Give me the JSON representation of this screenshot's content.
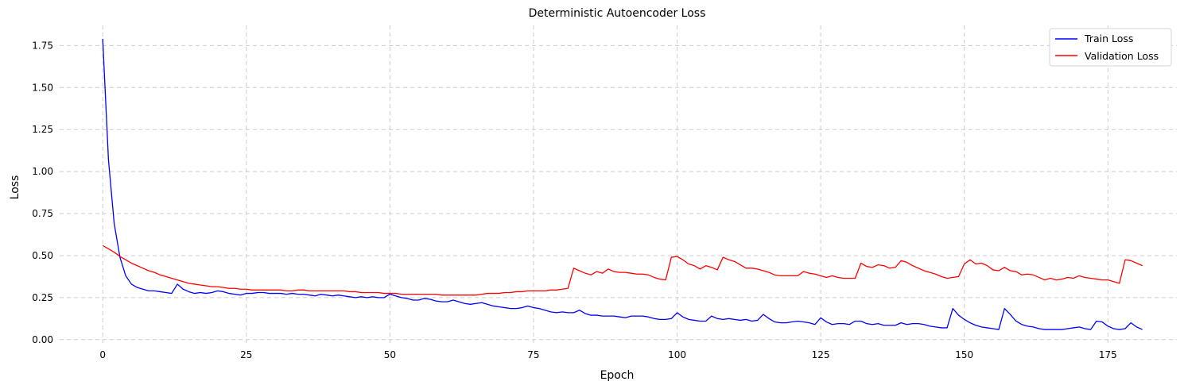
{
  "chart_data": {
    "type": "line",
    "title": "Deterministic Autoencoder Loss",
    "xlabel": "Epoch",
    "ylabel": "Loss",
    "xlim": [
      -7.5,
      187
    ],
    "ylim": [
      -0.02,
      1.87
    ],
    "xticks": [
      0,
      25,
      50,
      75,
      100,
      125,
      150,
      175
    ],
    "yticks": [
      0.0,
      0.25,
      0.5,
      0.75,
      1.0,
      1.25,
      1.5,
      1.75
    ],
    "ytick_labels": [
      "0.00",
      "0.25",
      "0.50",
      "0.75",
      "1.00",
      "1.25",
      "1.50",
      "1.75"
    ],
    "grid": true,
    "legend_position": "top-right",
    "series": [
      {
        "name": "Train Loss",
        "color": "#0000ff",
        "values": [
          1.79,
          1.07,
          0.69,
          0.49,
          0.38,
          0.33,
          0.31,
          0.3,
          0.29,
          0.29,
          0.285,
          0.28,
          0.275,
          0.33,
          0.3,
          0.285,
          0.275,
          0.28,
          0.275,
          0.28,
          0.29,
          0.285,
          0.275,
          0.27,
          0.265,
          0.275,
          0.275,
          0.28,
          0.28,
          0.275,
          0.275,
          0.275,
          0.27,
          0.275,
          0.27,
          0.27,
          0.265,
          0.26,
          0.27,
          0.265,
          0.26,
          0.265,
          0.26,
          0.255,
          0.25,
          0.255,
          0.25,
          0.255,
          0.25,
          0.25,
          0.27,
          0.26,
          0.25,
          0.245,
          0.235,
          0.235,
          0.245,
          0.24,
          0.23,
          0.225,
          0.225,
          0.235,
          0.225,
          0.215,
          0.21,
          0.215,
          0.22,
          0.21,
          0.2,
          0.195,
          0.19,
          0.185,
          0.185,
          0.19,
          0.2,
          0.19,
          0.185,
          0.175,
          0.165,
          0.16,
          0.165,
          0.16,
          0.16,
          0.175,
          0.155,
          0.145,
          0.145,
          0.14,
          0.14,
          0.14,
          0.135,
          0.13,
          0.14,
          0.14,
          0.14,
          0.135,
          0.125,
          0.12,
          0.12,
          0.125,
          0.16,
          0.135,
          0.12,
          0.115,
          0.11,
          0.11,
          0.14,
          0.125,
          0.12,
          0.125,
          0.12,
          0.115,
          0.12,
          0.11,
          0.115,
          0.15,
          0.125,
          0.105,
          0.1,
          0.1,
          0.105,
          0.11,
          0.105,
          0.1,
          0.09,
          0.13,
          0.105,
          0.09,
          0.095,
          0.095,
          0.09,
          0.11,
          0.11,
          0.095,
          0.09,
          0.095,
          0.085,
          0.085,
          0.085,
          0.1,
          0.09,
          0.095,
          0.095,
          0.09,
          0.08,
          0.075,
          0.07,
          0.07,
          0.185,
          0.145,
          0.12,
          0.1,
          0.085,
          0.075,
          0.07,
          0.065,
          0.06,
          0.185,
          0.15,
          0.11,
          0.09,
          0.08,
          0.075,
          0.065,
          0.06,
          0.06,
          0.06,
          0.06,
          0.065,
          0.07,
          0.075,
          0.065,
          0.06,
          0.11,
          0.105,
          0.08,
          0.065,
          0.06,
          0.065,
          0.1,
          0.075,
          0.06
        ]
      },
      {
        "name": "Validation Loss",
        "color": "#ff0000",
        "values": [
          0.56,
          0.54,
          0.52,
          0.495,
          0.475,
          0.455,
          0.44,
          0.425,
          0.41,
          0.4,
          0.385,
          0.375,
          0.365,
          0.355,
          0.345,
          0.335,
          0.33,
          0.325,
          0.32,
          0.315,
          0.315,
          0.31,
          0.305,
          0.305,
          0.3,
          0.3,
          0.295,
          0.295,
          0.295,
          0.295,
          0.295,
          0.295,
          0.29,
          0.29,
          0.295,
          0.295,
          0.29,
          0.29,
          0.29,
          0.29,
          0.29,
          0.29,
          0.29,
          0.285,
          0.285,
          0.28,
          0.28,
          0.28,
          0.28,
          0.275,
          0.275,
          0.275,
          0.27,
          0.27,
          0.27,
          0.27,
          0.27,
          0.27,
          0.27,
          0.265,
          0.265,
          0.265,
          0.265,
          0.265,
          0.265,
          0.265,
          0.27,
          0.275,
          0.275,
          0.275,
          0.28,
          0.28,
          0.285,
          0.285,
          0.29,
          0.29,
          0.29,
          0.29,
          0.295,
          0.295,
          0.3,
          0.305,
          0.425,
          0.41,
          0.395,
          0.385,
          0.405,
          0.395,
          0.42,
          0.405,
          0.4,
          0.4,
          0.395,
          0.39,
          0.39,
          0.385,
          0.37,
          0.36,
          0.355,
          0.49,
          0.495,
          0.475,
          0.45,
          0.44,
          0.42,
          0.44,
          0.43,
          0.415,
          0.49,
          0.475,
          0.465,
          0.445,
          0.425,
          0.425,
          0.42,
          0.41,
          0.4,
          0.385,
          0.38,
          0.38,
          0.38,
          0.38,
          0.405,
          0.395,
          0.39,
          0.38,
          0.37,
          0.38,
          0.37,
          0.365,
          0.365,
          0.365,
          0.455,
          0.435,
          0.43,
          0.445,
          0.44,
          0.425,
          0.43,
          0.47,
          0.46,
          0.44,
          0.425,
          0.41,
          0.4,
          0.39,
          0.375,
          0.365,
          0.37,
          0.375,
          0.45,
          0.475,
          0.45,
          0.455,
          0.44,
          0.415,
          0.41,
          0.43,
          0.41,
          0.405,
          0.385,
          0.39,
          0.385,
          0.37,
          0.355,
          0.365,
          0.355,
          0.36,
          0.37,
          0.365,
          0.38,
          0.37,
          0.365,
          0.36,
          0.355,
          0.355,
          0.345,
          0.335,
          0.475,
          0.47,
          0.455,
          0.44
        ]
      }
    ]
  }
}
